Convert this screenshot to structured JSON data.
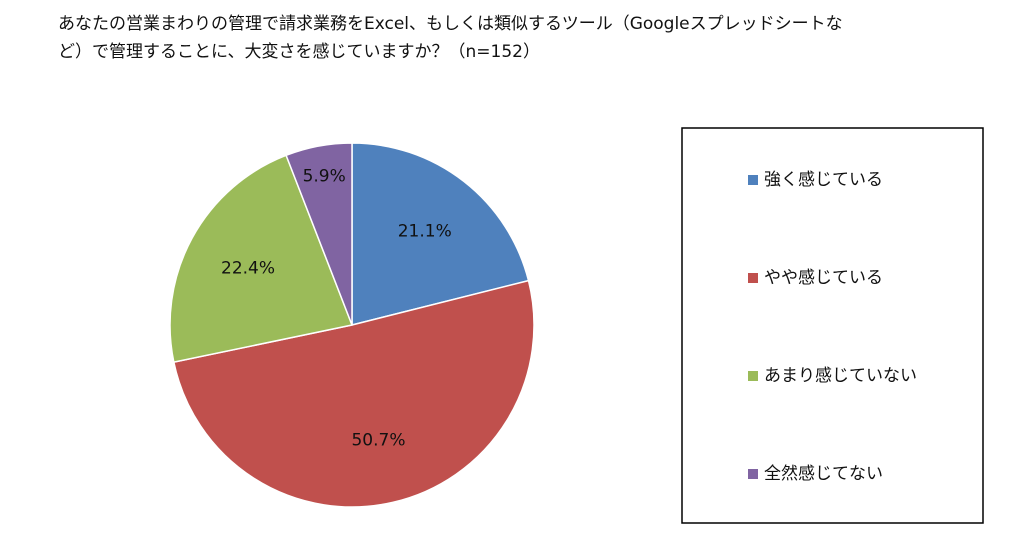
{
  "chart_data": {
    "type": "pie",
    "title": "あなたの営業まわりの管理で請求業務をExcel、もしくは類似するツール（Googleスプレッドシートなど）で管理することに、大変さを感じていますか？（n=152）",
    "categories": [
      "強く感じている",
      "やや感じている",
      "あまり感じていない",
      "全然感じてない"
    ],
    "values": [
      21.1,
      50.7,
      22.4,
      5.9
    ],
    "value_labels": [
      "21.1%",
      "50.7%",
      "22.4%",
      "5.9%"
    ],
    "colors": [
      "#4f81bd",
      "#c0504d",
      "#9bbb59",
      "#8064a2"
    ],
    "legend": "right"
  }
}
